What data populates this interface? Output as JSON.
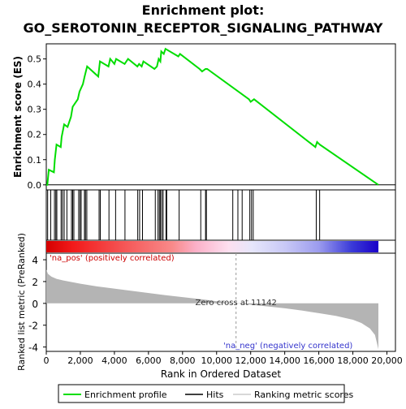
{
  "chart_data": {
    "type": "line",
    "title": "Enrichment plot:",
    "subtitle": "GO_SEROTONIN_RECEPTOR_SIGNALING_PATHWAY",
    "es_panel": {
      "ylabel": "Enrichment score (ES)",
      "ylim": [
        -0.02,
        0.56
      ],
      "yticks": [
        0.0,
        0.1,
        0.2,
        0.3,
        0.4,
        0.5
      ],
      "ytick_labels": [
        "0.0",
        "0.1",
        "0.2",
        "0.3",
        "0.4",
        "0.5"
      ],
      "series_name": "Enrichment profile",
      "color": "#00dd00",
      "x": [
        0,
        60,
        150,
        450,
        500,
        600,
        850,
        900,
        1050,
        1250,
        1450,
        1550,
        1850,
        1950,
        2150,
        2250,
        2400,
        3050,
        3150,
        3650,
        3750,
        4000,
        4100,
        4600,
        4800,
        5350,
        5450,
        5600,
        5700,
        6350,
        6500,
        6600,
        6700,
        6750,
        6900,
        7000,
        7750,
        7850,
        9000,
        9150,
        9350,
        9450,
        11900,
        12000,
        12200,
        15800,
        15900,
        16050,
        19500
      ],
      "y": [
        0.0,
        0.0,
        0.06,
        0.05,
        0.1,
        0.16,
        0.15,
        0.19,
        0.24,
        0.23,
        0.27,
        0.31,
        0.34,
        0.37,
        0.4,
        0.43,
        0.47,
        0.43,
        0.49,
        0.47,
        0.5,
        0.48,
        0.5,
        0.48,
        0.5,
        0.47,
        0.48,
        0.47,
        0.49,
        0.46,
        0.47,
        0.5,
        0.49,
        0.53,
        0.52,
        0.54,
        0.51,
        0.52,
        0.46,
        0.45,
        0.46,
        0.46,
        0.34,
        0.33,
        0.34,
        0.15,
        0.17,
        0.16,
        0.0
      ]
    },
    "hits": [
      80,
      260,
      480,
      560,
      620,
      870,
      950,
      1050,
      1210,
      1480,
      1550,
      1620,
      1900,
      1980,
      2050,
      2240,
      2300,
      2380,
      3100,
      3170,
      3680,
      4070,
      4620,
      5370,
      5480,
      5650,
      6400,
      6560,
      6640,
      6700,
      6780,
      6860,
      7030,
      7070,
      7800,
      9070,
      9350,
      9400,
      10950,
      11250,
      11500,
      11950,
      12050,
      12150,
      15850,
      16050
    ],
    "ranked_panel": {
      "ylabel": "Ranked list metric (PreRanked)",
      "ylim": [
        -4.4,
        4.6
      ],
      "yticks": [
        -4,
        -2,
        0,
        2,
        4
      ],
      "ytick_labels": [
        "-4",
        "-2",
        "0",
        "2",
        "4"
      ],
      "x": [
        0,
        100,
        300,
        600,
        1000,
        2000,
        3000,
        5000,
        7000,
        9000,
        10000,
        11142,
        12000,
        13000,
        14000,
        15000,
        16000,
        17000,
        18000,
        18500,
        19000,
        19300,
        19500
      ],
      "y": [
        3.1,
        2.7,
        2.45,
        2.25,
        2.1,
        1.8,
        1.55,
        1.15,
        0.75,
        0.4,
        0.2,
        0.0,
        -0.12,
        -0.28,
        -0.45,
        -0.65,
        -0.9,
        -1.15,
        -1.5,
        -1.8,
        -2.3,
        -2.9,
        -4.2
      ],
      "annotations": {
        "pos": "'na_pos' (positively correlated)",
        "neg": "'na_neg' (negatively correlated)",
        "zero_cross": "Zero cross at 11142"
      },
      "zero_cross": 11142
    },
    "xlabel": "Rank in Ordered Dataset",
    "xlim": [
      0,
      20500
    ],
    "xticks": [
      0,
      2000,
      4000,
      6000,
      8000,
      10000,
      12000,
      14000,
      16000,
      18000,
      20000
    ],
    "xtick_labels": [
      "0",
      "2,000",
      "4,000",
      "6,000",
      "8,000",
      "10,000",
      "12,000",
      "14,000",
      "16,000",
      "18,000",
      "20,000"
    ],
    "n_genes": 19500,
    "legend": {
      "placement": "bottom",
      "items": [
        "Enrichment profile",
        "Hits",
        "Ranking metric scores"
      ]
    }
  }
}
